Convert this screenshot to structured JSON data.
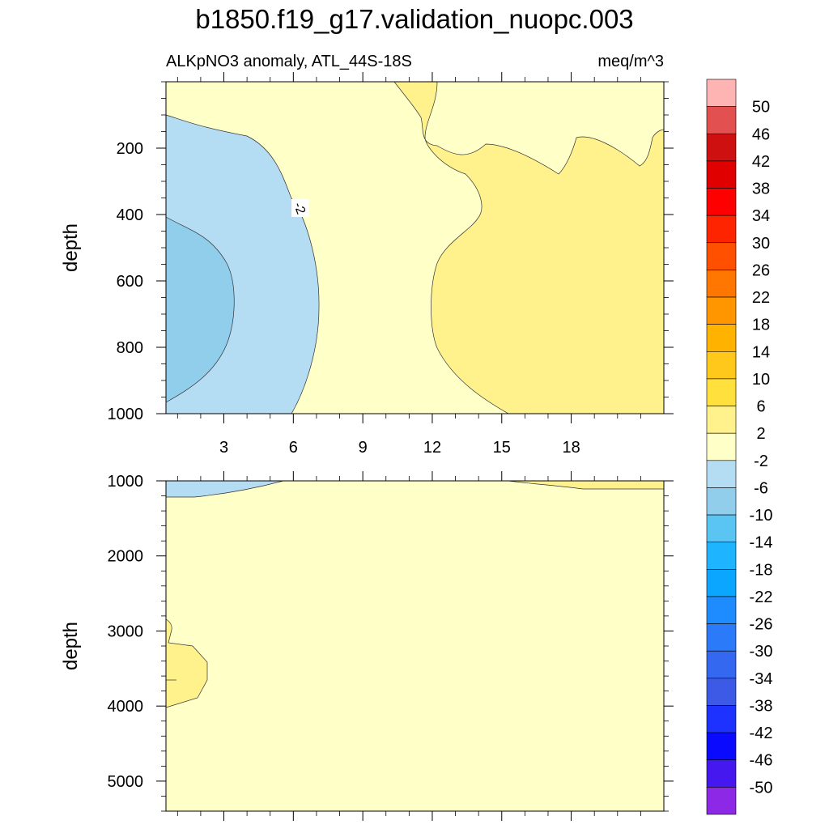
{
  "chart_data": {
    "type": "heatmap",
    "title": "b1850.f19_g17.validation_nuopc.003",
    "subtitle_left": "ALKpNO3 anomaly, ATL_44S-18S",
    "subtitle_right": "meq/m^3",
    "xlabel": "",
    "ylabel": "depth",
    "xlim": [
      0.5,
      22
    ],
    "x_ticks": [
      3,
      6,
      9,
      12,
      15,
      18
    ],
    "x_tick_labels": [
      "3",
      "6",
      "9",
      "12",
      "15",
      "18"
    ],
    "contour_label": "-2",
    "panels": [
      {
        "name": "upper",
        "ylim": [
          0,
          1000
        ],
        "y_ticks": [
          200,
          400,
          600,
          800,
          1000
        ],
        "y_tick_labels": [
          "200",
          "400",
          "600",
          "800",
          "1000"
        ],
        "regions": [
          {
            "level": "-2 to 2",
            "color": "#ffffc8"
          },
          {
            "level": "-6 to -2",
            "color": "#b4dcf2"
          },
          {
            "level": "-10 to -6",
            "color": "#90ceec"
          },
          {
            "level": "2 to 6",
            "color": "#fff28c"
          }
        ]
      },
      {
        "name": "lower",
        "ylim": [
          1000,
          5400
        ],
        "y_ticks": [
          1000,
          2000,
          3000,
          4000,
          5000
        ],
        "y_tick_labels": [
          "1000",
          "2000",
          "3000",
          "4000",
          "5000"
        ],
        "regions": [
          {
            "level": "-2 to 2",
            "color": "#ffffc8"
          },
          {
            "level": "-6 to -2",
            "color": "#b4dcf2"
          },
          {
            "level": "2 to 6",
            "color": "#fff28c"
          }
        ]
      }
    ],
    "colorbar": {
      "labels": [
        "50",
        "46",
        "42",
        "38",
        "34",
        "30",
        "26",
        "22",
        "18",
        "14",
        "10",
        "6",
        "2",
        "-2",
        "-6",
        "-10",
        "-14",
        "-18",
        "-22",
        "-26",
        "-30",
        "-34",
        "-38",
        "-42",
        "-46",
        "-50"
      ],
      "colors": [
        "#ffb4b4",
        "#e25050",
        "#cf1010",
        "#e00000",
        "#ff0000",
        "#ff2400",
        "#ff5000",
        "#ff7600",
        "#ff9600",
        "#ffb200",
        "#ffc81a",
        "#ffe03c",
        "#fff28c",
        "#ffffc8",
        "#b4dcf2",
        "#90ceec",
        "#5ac4f2",
        "#1eb4ff",
        "#0aa6ff",
        "#1e8cff",
        "#2b7afa",
        "#3568f0",
        "#3c5ae6",
        "#1e32ff",
        "#0a0aff",
        "#4618f0",
        "#8c28e6"
      ]
    }
  }
}
